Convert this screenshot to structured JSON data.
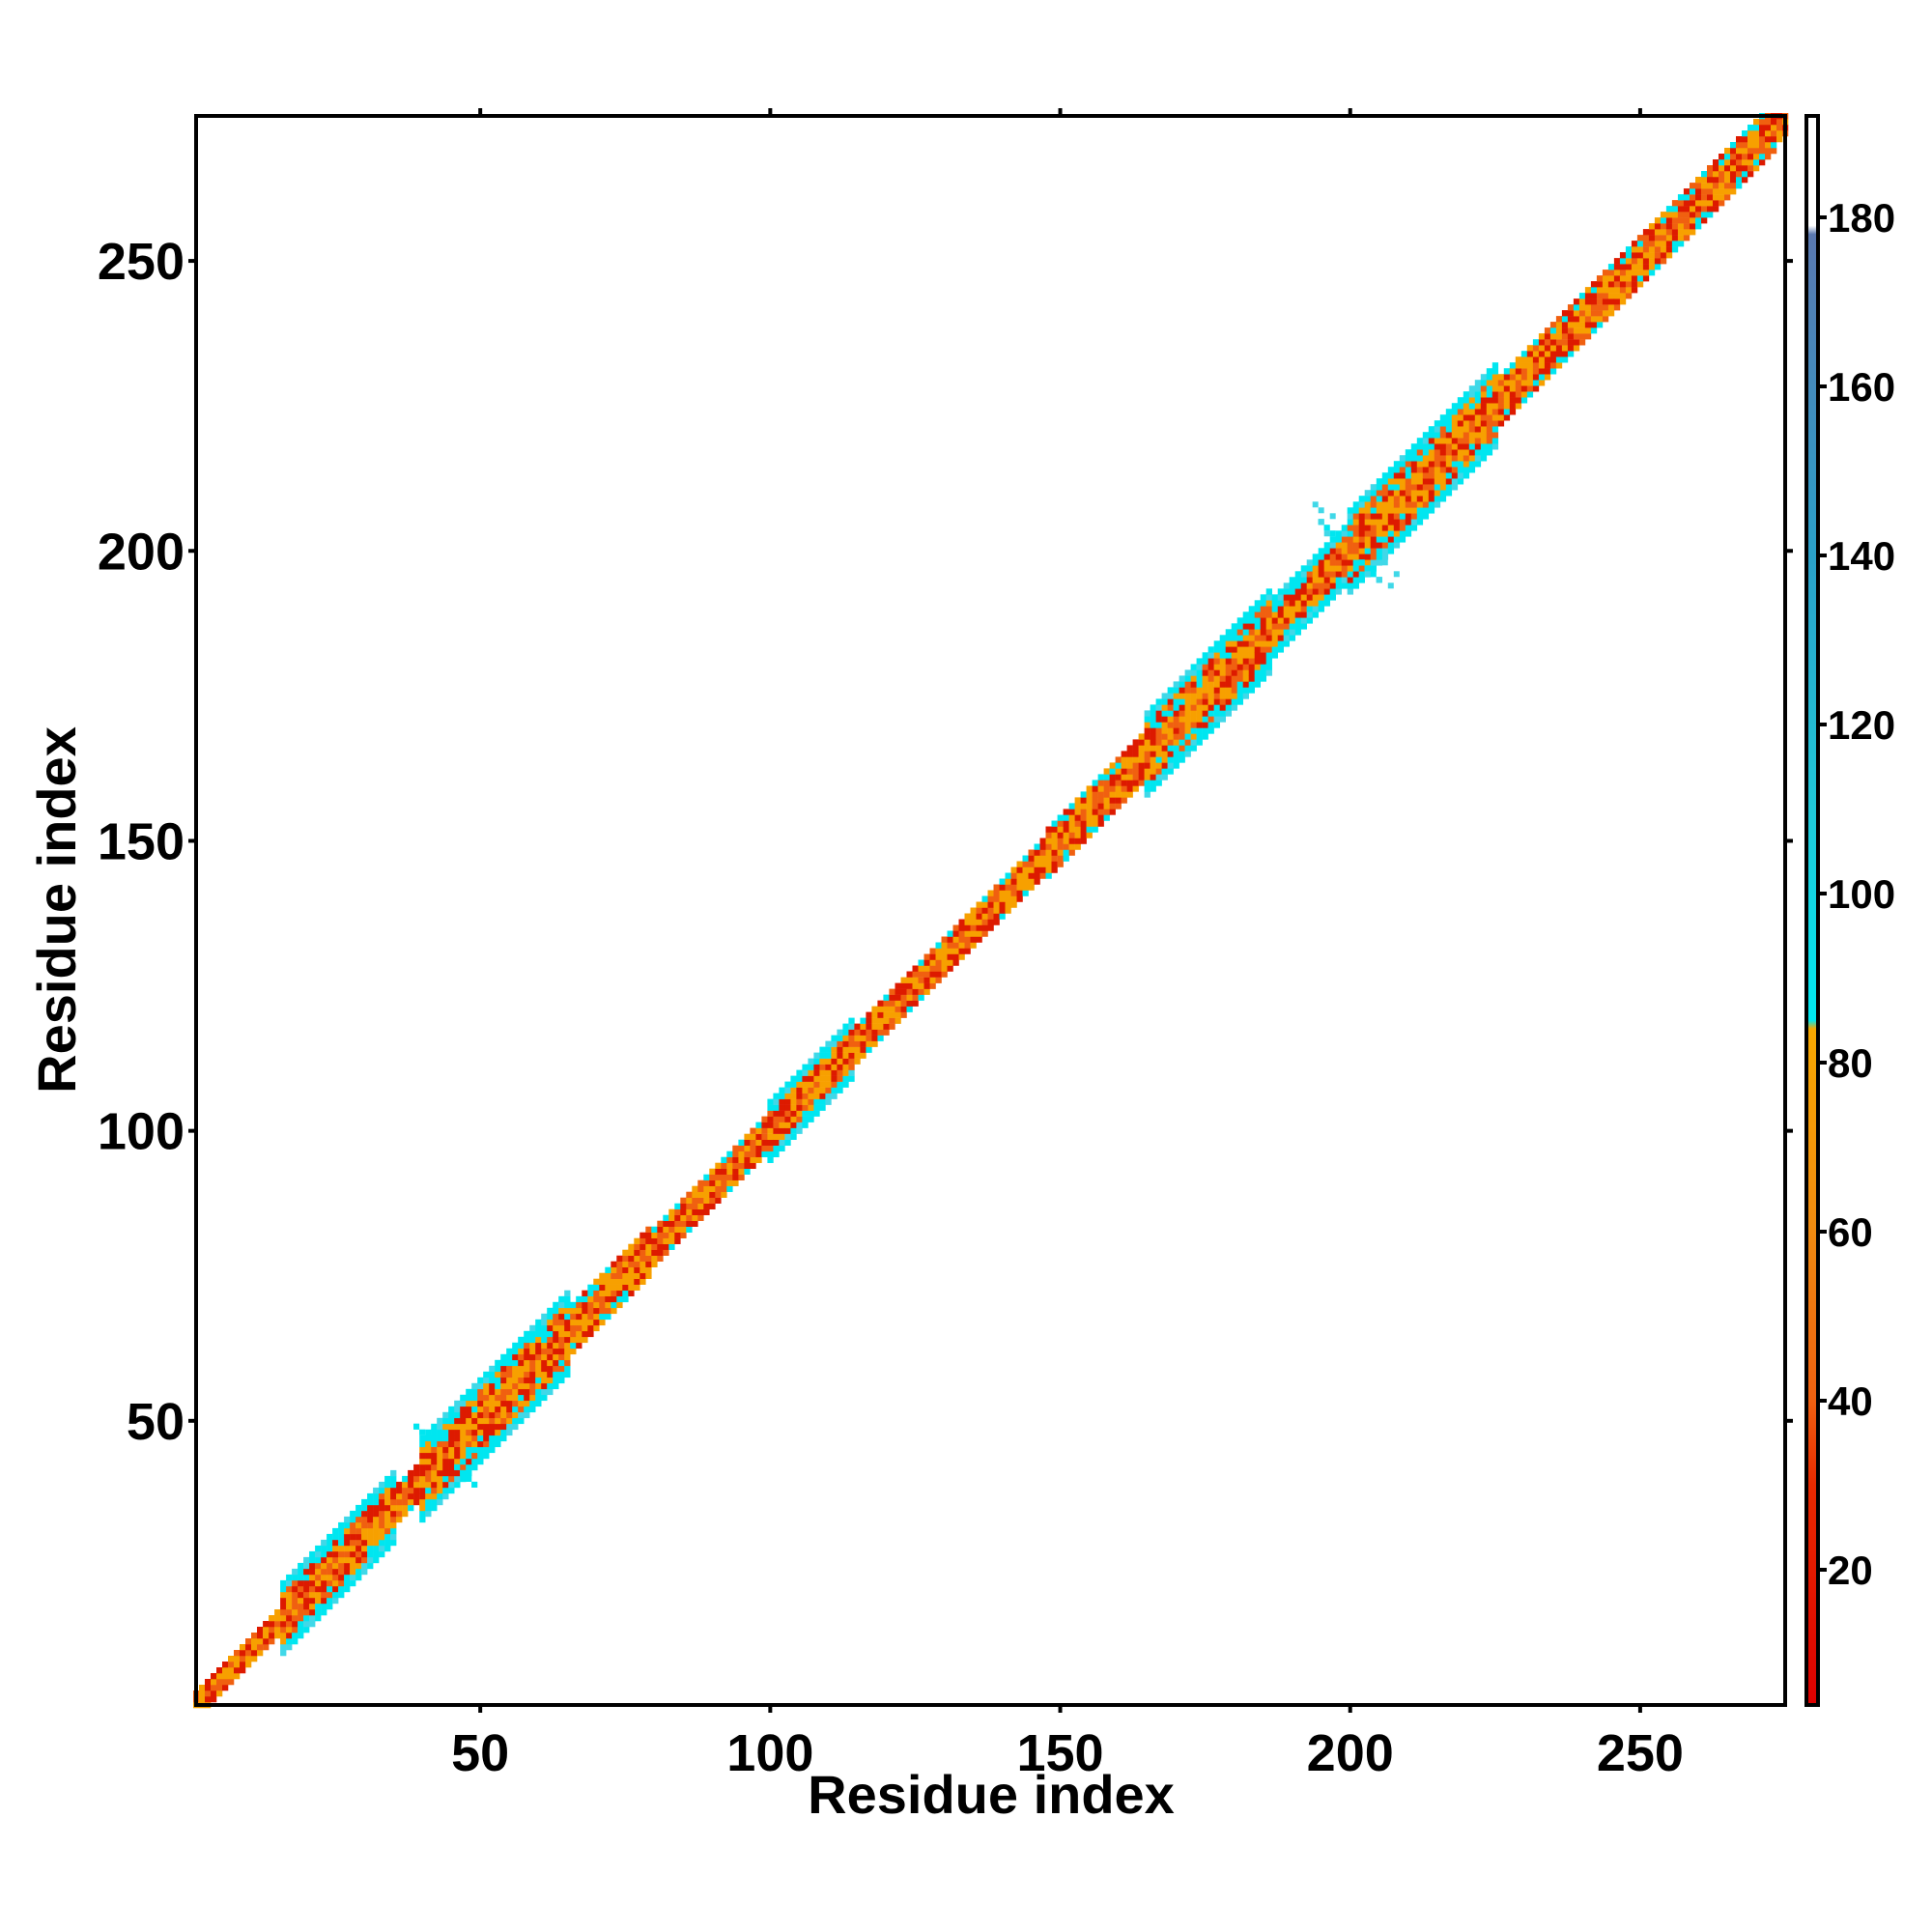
{
  "chart_data": {
    "type": "heatmap",
    "title": "",
    "xlabel": "Residue index",
    "ylabel": "Residue index",
    "xlim": [
      1,
      275
    ],
    "ylim": [
      1,
      275
    ],
    "x_ticks": [
      50,
      100,
      150,
      200,
      250
    ],
    "y_ticks": [
      50,
      100,
      150,
      200,
      250
    ],
    "x_tick_labels": [
      "50",
      "100",
      "150",
      "200",
      "250"
    ],
    "y_tick_labels": [
      "50",
      "100",
      "150",
      "200",
      "250"
    ],
    "grid": false,
    "cell_pattern": "band along the diagonal: cells within ~4 residues of the diagonal hold low values (red/orange, 10-80); cells at 4-8 residues from the diagonal in strand/helix regions hold higher values (cyan, 90-130); off-diagonal cells are empty (white)",
    "band_segments": [
      {
        "start": 1,
        "end": 16,
        "half_width": 2
      },
      {
        "start": 16,
        "end": 36,
        "half_width": 6
      },
      {
        "start": 36,
        "end": 40,
        "half_width": 3
      },
      {
        "start": 40,
        "end": 66,
        "half_width": 7
      },
      {
        "start": 66,
        "end": 80,
        "half_width": 4
      },
      {
        "start": 80,
        "end": 100,
        "half_width": 3
      },
      {
        "start": 100,
        "end": 115,
        "half_width": 5
      },
      {
        "start": 115,
        "end": 148,
        "half_width": 3
      },
      {
        "start": 148,
        "end": 165,
        "half_width": 4
      },
      {
        "start": 165,
        "end": 187,
        "half_width": 7
      },
      {
        "start": 187,
        "end": 200,
        "half_width": 5
      },
      {
        "start": 200,
        "end": 226,
        "half_width": 7
      },
      {
        "start": 226,
        "end": 274,
        "half_width": 4
      }
    ],
    "off_diagonal_features": [
      {
        "x": 44,
        "y": 44,
        "description": "cyan cross-shaped feature at residue ~44"
      },
      {
        "x": 200,
        "y": 200,
        "description": "cyan cross-shaped feature with scattered dotted contacts around residues 194-209"
      }
    ],
    "colorbar": {
      "range": [
        4,
        192
      ],
      "ticks": [
        20,
        40,
        60,
        80,
        100,
        120,
        140,
        160,
        180
      ],
      "tick_labels": [
        "20",
        "40",
        "60",
        "80",
        "100",
        "120",
        "140",
        "160",
        "180"
      ],
      "stops": [
        {
          "value": 4,
          "color": "#dd0000"
        },
        {
          "value": 30,
          "color": "#e82a00"
        },
        {
          "value": 40,
          "color": "#f06010"
        },
        {
          "value": 60,
          "color": "#f08a10"
        },
        {
          "value": 84,
          "color": "#f7a800"
        },
        {
          "value": 85,
          "color": "#00e8f0"
        },
        {
          "value": 110,
          "color": "#20c8d8"
        },
        {
          "value": 140,
          "color": "#2aa0c8"
        },
        {
          "value": 178,
          "color": "#5a78b0"
        },
        {
          "value": 179,
          "color": "#ffffff"
        },
        {
          "value": 192,
          "color": "#ffffff"
        }
      ]
    }
  },
  "colors": {
    "red": "#dd1a00",
    "orange_red": "#f06010",
    "orange": "#f7a000",
    "cyan": "#00e6f0",
    "light_cyan": "#40d8e8",
    "background": "#ffffff",
    "axis": "#000000"
  }
}
